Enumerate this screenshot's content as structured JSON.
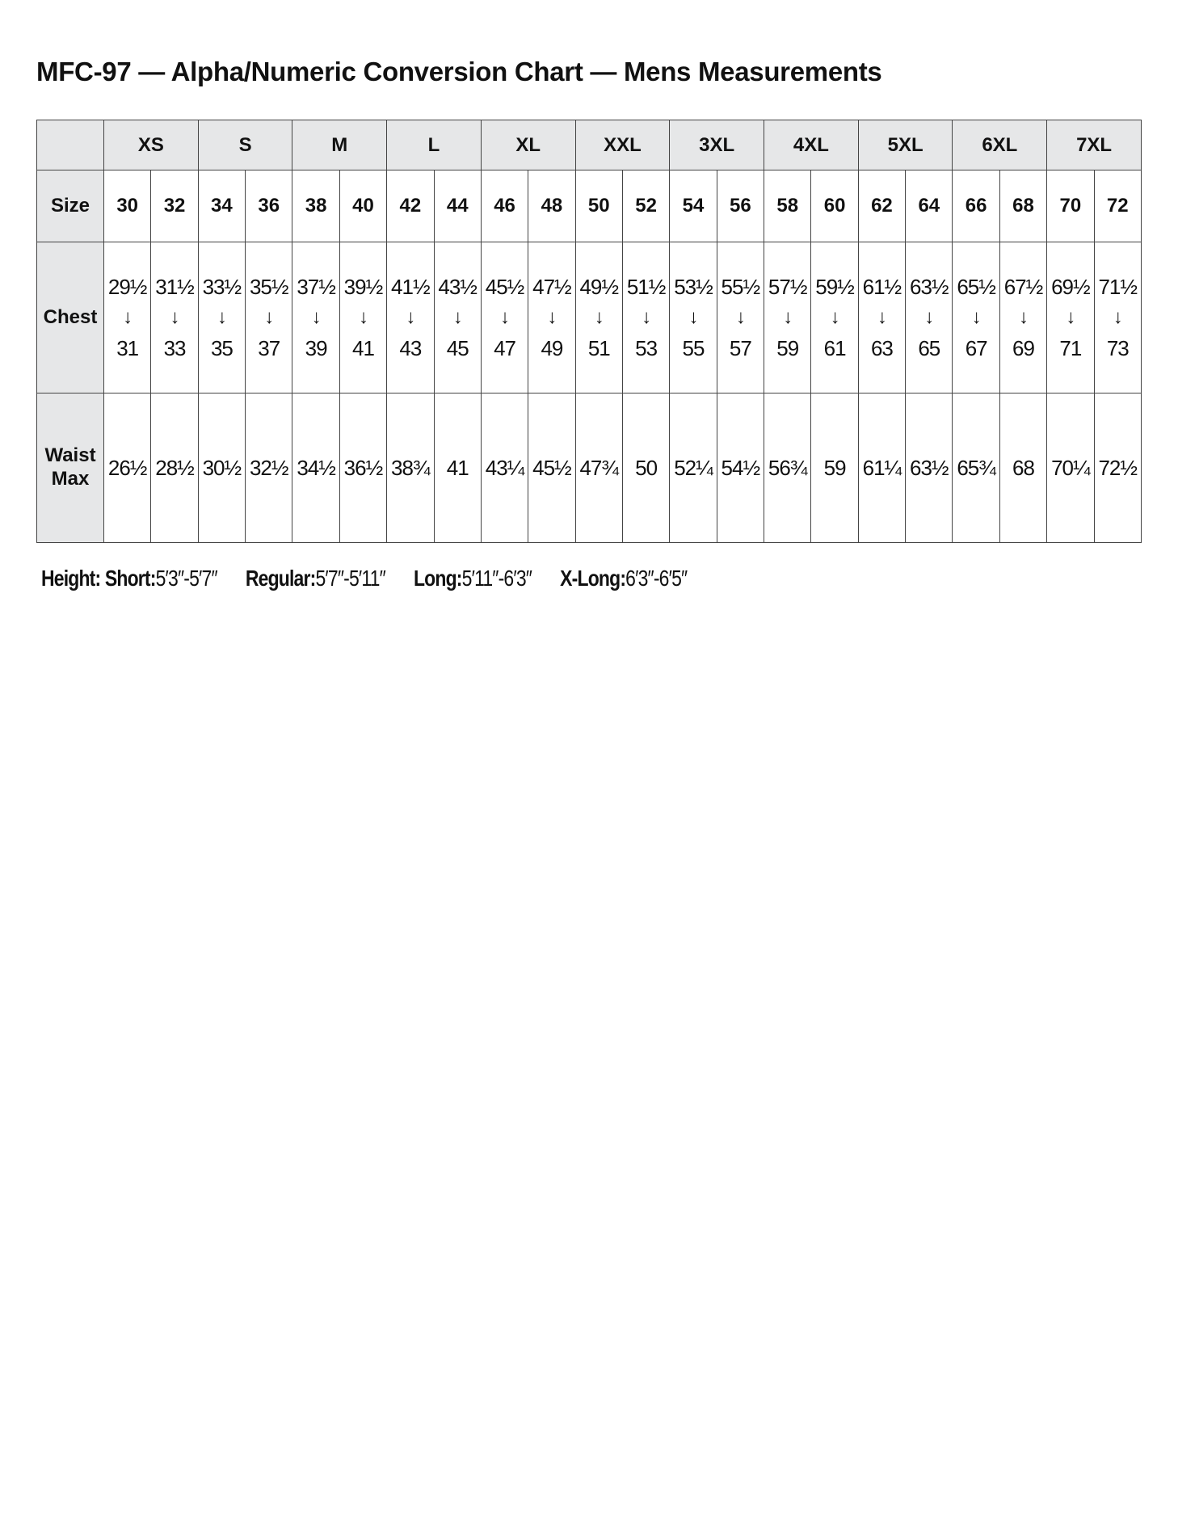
{
  "title": "MFC-97 — Alpha/Numeric Conversion Chart — Mens Measurements",
  "table": {
    "alpha_sizes": [
      "XS",
      "S",
      "M",
      "L",
      "XL",
      "XXL",
      "3XL",
      "4XL",
      "5XL",
      "6XL",
      "7XL"
    ],
    "size_label": "Size",
    "sizes": [
      "30",
      "32",
      "34",
      "36",
      "38",
      "40",
      "42",
      "44",
      "46",
      "48",
      "50",
      "52",
      "54",
      "56",
      "58",
      "60",
      "62",
      "64",
      "66",
      "68",
      "70",
      "72"
    ],
    "chest_label": "Chest",
    "chest_from": [
      "29½",
      "31½",
      "33½",
      "35½",
      "37½",
      "39½",
      "41½",
      "43½",
      "45½",
      "47½",
      "49½",
      "51½",
      "53½",
      "55½",
      "57½",
      "59½",
      "61½",
      "63½",
      "65½",
      "67½",
      "69½",
      "71½"
    ],
    "chest_arrow": "↓",
    "chest_to": [
      "31",
      "33",
      "35",
      "37",
      "39",
      "41",
      "43",
      "45",
      "47",
      "49",
      "51",
      "53",
      "55",
      "57",
      "59",
      "61",
      "63",
      "65",
      "67",
      "69",
      "71",
      "73"
    ],
    "waist_label_1": "Waist",
    "waist_label_2": "Max",
    "waist": [
      "26½",
      "28½",
      "30½",
      "32½",
      "34½",
      "36½",
      "38¾",
      "41",
      "43¼",
      "45½",
      "47¾",
      "50",
      "52¼",
      "54½",
      "56¾",
      "59",
      "61¼",
      "63½",
      "65¾",
      "68",
      "70¼",
      "72½"
    ]
  },
  "footer": {
    "height_label": "Height:",
    "items": [
      {
        "label": "Short:",
        "value": "5′3″-5′7″"
      },
      {
        "label": "Regular:",
        "value": "5′7″-5′11″"
      },
      {
        "label": "Long:",
        "value": "5′11″-6′3″"
      },
      {
        "label": "X-Long:",
        "value": "6′3″-6′5″"
      }
    ]
  },
  "colors": {
    "header_bg": "#e6e7e8",
    "border": "#444444"
  }
}
